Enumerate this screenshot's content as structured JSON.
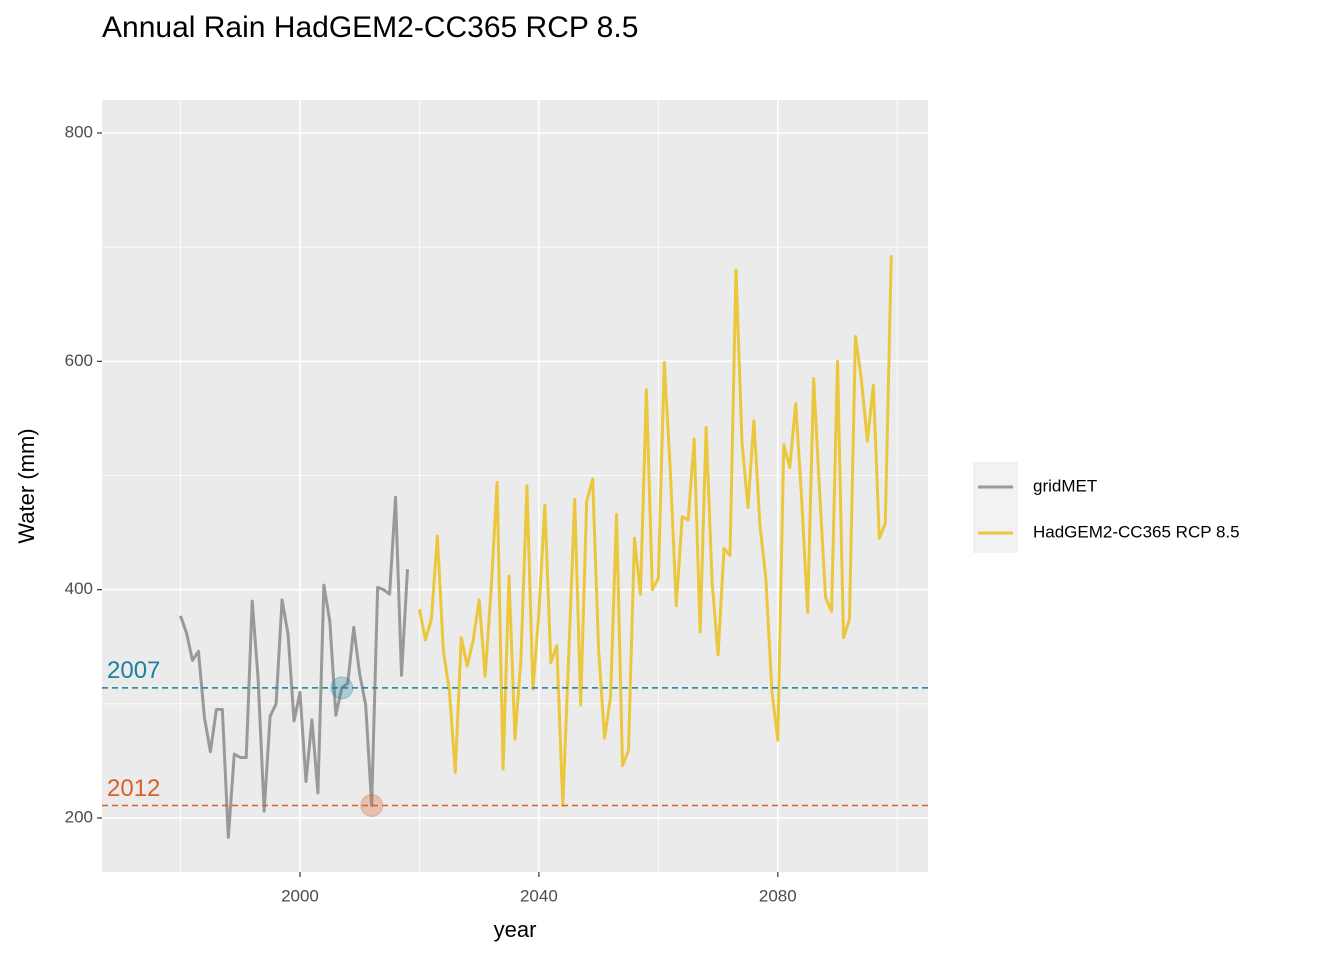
{
  "chart_data": {
    "type": "line",
    "title": "Annual Rain HadGEM2-CC365 RCP 8.5",
    "x_label": "year",
    "y_label": "Water (mm)",
    "xlim": [
      1966.85,
      2105.15
    ],
    "xticks": [
      2000,
      2040,
      2080
    ],
    "x_minor_ticks": [
      1980,
      2020,
      2060,
      2100
    ],
    "ylim": [
      152.7,
      828.9
    ],
    "yticks": [
      200,
      400,
      600,
      800
    ],
    "y_minor_ticks": [
      300,
      500,
      700
    ],
    "grid": true,
    "legend": "right",
    "series": [
      {
        "name": "gridMET",
        "color": "#999999",
        "x": [
          1980,
          1981,
          1982,
          1983,
          1984,
          1985,
          1986,
          1987,
          1988,
          1989,
          1990,
          1991,
          1992,
          1993,
          1994,
          1995,
          1996,
          1997,
          1998,
          1999,
          2000,
          2001,
          2002,
          2003,
          2004,
          2005,
          2006,
          2007,
          2008,
          2009,
          2010,
          2011,
          2012,
          2013,
          2014,
          2015,
          2016,
          2017,
          2018
        ],
        "values": [
          377,
          362,
          338,
          346,
          288,
          258,
          295,
          295,
          183,
          256,
          253,
          253,
          390,
          321,
          206,
          289,
          300,
          391,
          361,
          285,
          310,
          232,
          286,
          222,
          404,
          372,
          290,
          314,
          318,
          367,
          326,
          299,
          211,
          402,
          400,
          396,
          481,
          325,
          418
        ]
      },
      {
        "name": "HadGEM2-CC365 RCP 8.5",
        "color": "#EBC73E",
        "x": [
          2020,
          2021,
          2022,
          2023,
          2024,
          2025,
          2026,
          2027,
          2028,
          2029,
          2030,
          2031,
          2032,
          2033,
          2034,
          2035,
          2036,
          2037,
          2038,
          2039,
          2040,
          2041,
          2042,
          2043,
          2044,
          2045,
          2046,
          2047,
          2048,
          2049,
          2050,
          2051,
          2052,
          2053,
          2054,
          2055,
          2056,
          2057,
          2058,
          2059,
          2060,
          2061,
          2062,
          2063,
          2064,
          2065,
          2066,
          2067,
          2068,
          2069,
          2070,
          2071,
          2072,
          2073,
          2074,
          2075,
          2076,
          2077,
          2078,
          2079,
          2080,
          2081,
          2082,
          2083,
          2084,
          2085,
          2086,
          2087,
          2088,
          2089,
          2090,
          2091,
          2092,
          2093,
          2094,
          2095,
          2096,
          2097,
          2098,
          2099
        ],
        "values": [
          383,
          356,
          374,
          447,
          347,
          312,
          240,
          358,
          333,
          356,
          391,
          324,
          400,
          494,
          243,
          412,
          269,
          340,
          491,
          313,
          380,
          474,
          336,
          351,
          211,
          343,
          479,
          299,
          477,
          497,
          347,
          270,
          306,
          466,
          246,
          259,
          445,
          396,
          575,
          400,
          410,
          599,
          505,
          386,
          464,
          461,
          532,
          363,
          542,
          407,
          343,
          436,
          430,
          680,
          530,
          472,
          548,
          457,
          410,
          312,
          268,
          527,
          507,
          563,
          479,
          380,
          585,
          486,
          393,
          381,
          600,
          358,
          374,
          622,
          584,
          530,
          579,
          445,
          458,
          693
        ]
      }
    ],
    "hlines": [
      {
        "label": "2007",
        "value": 314,
        "x": 2007,
        "color": "#1B819E"
      },
      {
        "label": "2012",
        "value": 211,
        "x": 2012,
        "color": "#D8602A"
      }
    ]
  }
}
